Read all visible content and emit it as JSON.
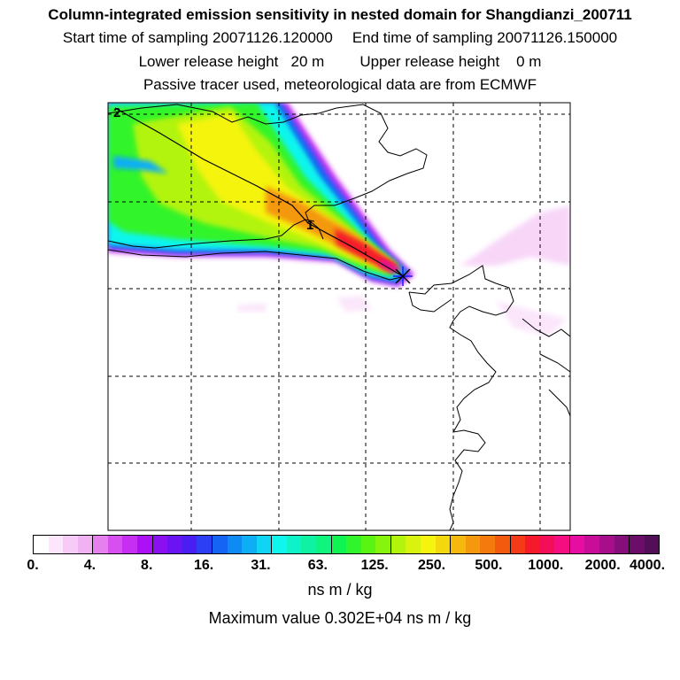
{
  "header": {
    "title": "Column-integrated emission sensitivity in nested domain for Shangdianzi_200711",
    "start_label": "Start time of sampling 20071126.120000",
    "end_label": "End time of sampling 20071126.150000",
    "lower_label": "Lower release height   20 m",
    "upper_label": "Upper release height    0 m",
    "tracer_note": "Passive tracer used, meteorological data are from ECMWF"
  },
  "map": {
    "trajectory_labels": [
      "2",
      "1"
    ],
    "release_site_marker": "star-marker-icon"
  },
  "colorbar": {
    "ticks": [
      "0.",
      "4.",
      "8.",
      "16.",
      "31.",
      "63.",
      "125.",
      "250.",
      "500.",
      "1000.",
      "2000.",
      "4000."
    ],
    "units": "ns m / kg",
    "colors": [
      "#ffffff",
      "#fbe6fb",
      "#f6ccf6",
      "#f1b2f1",
      "#e680ec",
      "#d84ff0",
      "#c62ef2",
      "#ac10f4",
      "#8a10f2",
      "#6a14f4",
      "#4a1ef2",
      "#2c3ff4",
      "#1664f4",
      "#0e8af4",
      "#0eaef4",
      "#10d4f4",
      "#0ef6ee",
      "#0ef2c8",
      "#0ef2a2",
      "#0ef47c",
      "#10f452",
      "#30f42c",
      "#5af412",
      "#86f40c",
      "#b2f40c",
      "#d8f40e",
      "#f4f40e",
      "#f4d80e",
      "#f4b80e",
      "#f4980e",
      "#f47a0e",
      "#f45a0e",
      "#f43a16",
      "#f41a2c",
      "#f40e58",
      "#f40e82",
      "#e60ea0",
      "#c80e98",
      "#a60e8a",
      "#860e7a",
      "#6a0e6a",
      "#520e56"
    ]
  },
  "footer": {
    "max_value": "Maximum value  0.302E+04 ns m / kg"
  }
}
